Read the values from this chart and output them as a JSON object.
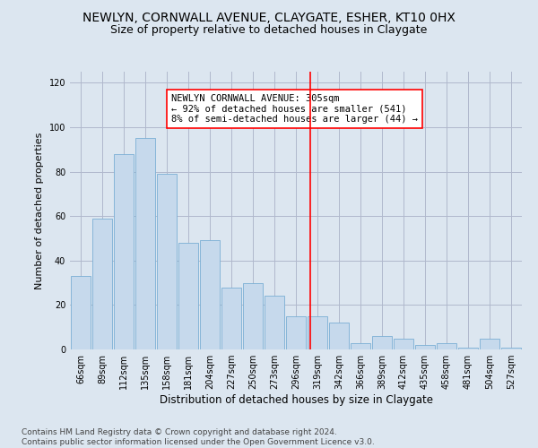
{
  "title1": "NEWLYN, CORNWALL AVENUE, CLAYGATE, ESHER, KT10 0HX",
  "title2": "Size of property relative to detached houses in Claygate",
  "xlabel": "Distribution of detached houses by size in Claygate",
  "ylabel": "Number of detached properties",
  "categories": [
    "66sqm",
    "89sqm",
    "112sqm",
    "135sqm",
    "158sqm",
    "181sqm",
    "204sqm",
    "227sqm",
    "250sqm",
    "273sqm",
    "296sqm",
    "319sqm",
    "342sqm",
    "366sqm",
    "389sqm",
    "412sqm",
    "435sqm",
    "458sqm",
    "481sqm",
    "504sqm",
    "527sqm"
  ],
  "values": [
    33,
    59,
    88,
    95,
    79,
    48,
    49,
    28,
    30,
    24,
    15,
    15,
    12,
    3,
    6,
    5,
    2,
    3,
    1,
    5,
    1
  ],
  "bar_color": "#c6d9ec",
  "bar_edge_color": "#7aafd4",
  "grid_color": "#b0b8cc",
  "bg_color": "#dce6f0",
  "vline_x_index": 10.65,
  "vline_color": "red",
  "annotation_text": "NEWLYN CORNWALL AVENUE: 305sqm\n← 92% of detached houses are smaller (541)\n8% of semi-detached houses are larger (44) →",
  "ylim": [
    0,
    125
  ],
  "yticks": [
    0,
    20,
    40,
    60,
    80,
    100,
    120
  ],
  "footnote": "Contains HM Land Registry data © Crown copyright and database right 2024.\nContains public sector information licensed under the Open Government Licence v3.0.",
  "title1_fontsize": 10,
  "title2_fontsize": 9,
  "xlabel_fontsize": 8.5,
  "ylabel_fontsize": 8,
  "tick_fontsize": 7,
  "annotation_fontsize": 7.5,
  "footnote_fontsize": 6.5
}
